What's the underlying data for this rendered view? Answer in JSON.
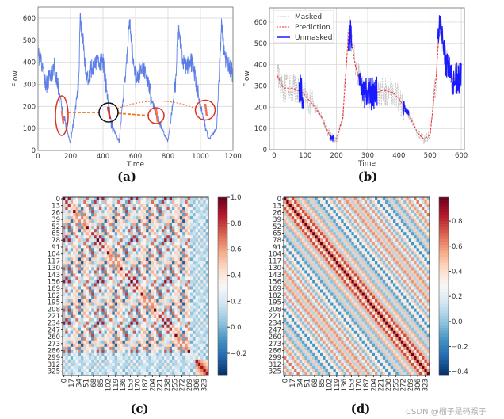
{
  "chart_data": [
    {
      "panel": "(a)",
      "type": "line",
      "xlabel": "Time",
      "ylabel": "Flow",
      "xlim": [
        0,
        1200
      ],
      "ylim": [
        0,
        650
      ],
      "xticks": [
        "0",
        "200",
        "400",
        "600",
        "800",
        "1000",
        "1200"
      ],
      "yticks": [
        "0",
        "100",
        "200",
        "300",
        "400",
        "500",
        "600"
      ],
      "grid": true,
      "series_color": "#4169e1",
      "x": [
        0,
        50,
        100,
        150,
        200,
        250,
        260,
        300,
        350,
        400,
        450,
        500,
        550,
        560,
        600,
        650,
        700,
        750,
        800,
        850,
        860,
        900,
        950,
        1000,
        1050,
        1100,
        1130,
        1150,
        1200
      ],
      "y": [
        450,
        300,
        380,
        180,
        30,
        300,
        600,
        330,
        400,
        400,
        120,
        40,
        450,
        600,
        320,
        380,
        230,
        120,
        40,
        330,
        560,
        380,
        400,
        200,
        50,
        100,
        580,
        420,
        350
      ],
      "annotations": {
        "highlight_color": "#e03020",
        "query_circle_color": "#111111",
        "link_color": "#f07820"
      }
    },
    {
      "panel": "(b)",
      "type": "line",
      "xlabel": "Time",
      "ylabel": "Flow",
      "xlim": [
        0,
        610
      ],
      "ylim": [
        0,
        667
      ],
      "xticks": [
        "0",
        "100",
        "200",
        "300",
        "400",
        "500",
        "600"
      ],
      "yticks": [
        "0",
        "100",
        "200",
        "300",
        "400",
        "500",
        "600"
      ],
      "grid": true,
      "legend": "top-left",
      "series": [
        {
          "name": "Masked",
          "color": "#bbbbbb",
          "style": "dashed"
        },
        {
          "name": "Prediction",
          "color": "#ff2a2a",
          "style": "dashed",
          "x": [
            10,
            30,
            60,
            90,
            120,
            150,
            180,
            200,
            220,
            240,
            260,
            280,
            300,
            330,
            350,
            380,
            400,
            430,
            460,
            480,
            500,
            520,
            530,
            550,
            570,
            590
          ],
          "y": [
            350,
            290,
            290,
            270,
            220,
            160,
            60,
            50,
            150,
            580,
            400,
            290,
            260,
            270,
            280,
            270,
            240,
            170,
            80,
            50,
            70,
            350,
            600,
            420,
            330,
            340
          ]
        },
        {
          "name": "Unmasked",
          "color": "#1a1aff",
          "style": "solid",
          "segments": [
            [
              80,
              95
            ],
            [
              180,
              190
            ],
            [
              238,
              250
            ],
            [
              272,
              330
            ],
            [
              415,
              432
            ],
            [
              525,
              600
            ]
          ]
        }
      ]
    },
    {
      "panel": "(c)",
      "type": "heatmap",
      "colormap": "RdBu_r",
      "yticks": [
        "0",
        "13",
        "26",
        "39",
        "52",
        "65",
        "78",
        "91",
        "104",
        "117",
        "130",
        "143",
        "156",
        "169",
        "182",
        "195",
        "208",
        "221",
        "234",
        "247",
        "260",
        "273",
        "286",
        "299",
        "312",
        "325"
      ],
      "xticks": [
        "0",
        "17",
        "34",
        "51",
        "68",
        "85",
        "102",
        "119",
        "136",
        "153",
        "170",
        "187",
        "204",
        "221",
        "238",
        "255",
        "272",
        "289",
        "306",
        "323"
      ],
      "colorbar": {
        "range": [
          -0.37,
          1.0
        ],
        "ticks": [
          "1.0",
          "0.8",
          "0.6",
          "0.4",
          "0.2",
          "0.0",
          "−0.2"
        ],
        "tick_values": [
          1.0,
          0.8,
          0.6,
          0.4,
          0.2,
          0.0,
          -0.2
        ]
      }
    },
    {
      "panel": "(d)",
      "type": "heatmap",
      "colormap": "RdBu_r",
      "yticks": [
        "0",
        "13",
        "26",
        "39",
        "52",
        "65",
        "78",
        "91",
        "104",
        "117",
        "130",
        "143",
        "156",
        "169",
        "182",
        "195",
        "208",
        "221",
        "234",
        "247",
        "260",
        "273",
        "286",
        "299",
        "312",
        "325"
      ],
      "xticks": [
        "0",
        "17",
        "34",
        "51",
        "68",
        "85",
        "102",
        "119",
        "136",
        "153",
        "170",
        "187",
        "204",
        "221",
        "238",
        "255",
        "272",
        "289",
        "306",
        "323"
      ],
      "colorbar": {
        "range": [
          -0.43,
          0.99
        ],
        "ticks": [
          "0.8",
          "0.6",
          "0.4",
          "0.2",
          "0.0",
          "−0.2",
          "−0.4"
        ],
        "tick_values": [
          0.8,
          0.6,
          0.4,
          0.2,
          0.0,
          -0.2,
          -0.4
        ]
      }
    }
  ],
  "captions": [
    "(a)",
    "(b)",
    "(c)",
    "(d)"
  ],
  "watermark": "CSDN @榴子是码猴子"
}
